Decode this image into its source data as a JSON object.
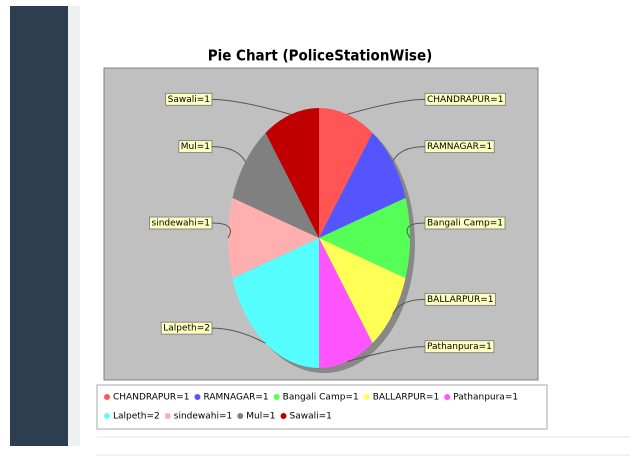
{
  "chart_data": {
    "type": "pie",
    "title": "Pie Chart (PoliceStationWise)",
    "categories": [
      "CHANDRAPUR=1",
      "RAMNAGAR=1",
      "Bangali Camp=1",
      "BALLARPUR=1",
      "Pathanpura=1",
      "Lalpeth=2",
      "sindewahi=1",
      "Mul=1",
      "Sawali=1"
    ],
    "values": [
      1,
      1,
      1,
      1,
      1,
      2,
      1,
      1,
      1
    ],
    "colors": [
      "#ff5555",
      "#5555ff",
      "#55ff55",
      "#ffff55",
      "#ff55ff",
      "#55ffff",
      "#ffafaf",
      "#808080",
      "#c00000"
    ],
    "legend": "bottom"
  }
}
